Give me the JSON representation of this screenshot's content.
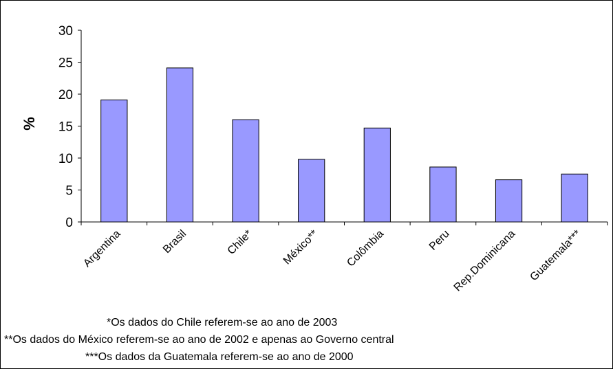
{
  "chart_data": {
    "type": "bar",
    "categories": [
      "Argentina",
      "Brasil",
      "Chile*",
      "México**",
      "Colômbia",
      "Peru",
      "Rep.Dominicana",
      "Guatemala***"
    ],
    "values": [
      19.1,
      24.1,
      16.0,
      9.8,
      14.7,
      8.6,
      6.6,
      7.5
    ],
    "ylabel": "%",
    "xlabel": "",
    "ylim": [
      0,
      30
    ],
    "yticks": [
      0,
      5,
      10,
      15,
      20,
      25,
      30
    ],
    "grid": false,
    "bar_color": "#9999ff",
    "footnotes": [
      "*Os dados do Chile referem-se ao ano de 2003",
      "**Os dados do México referem-se ao ano de 2002 e apenas ao Governo central",
      "***Os dados da Guatemala referem-se ao ano de 2000"
    ]
  }
}
